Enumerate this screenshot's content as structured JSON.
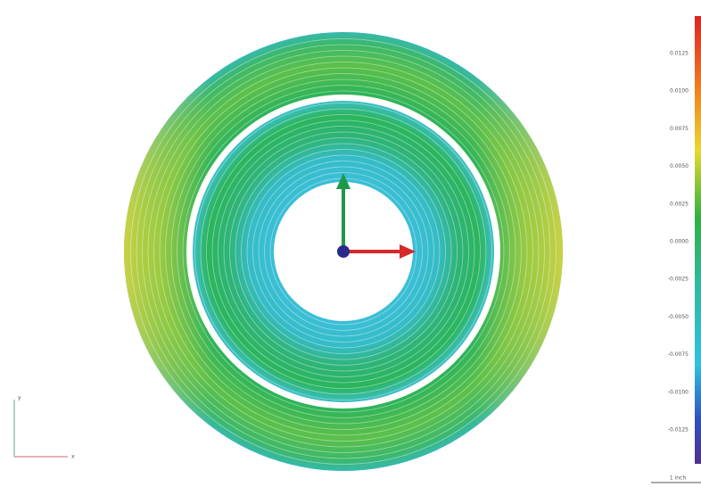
{
  "legend": {
    "labels": [
      "0.0125",
      "0.0100",
      "0.0075",
      "0.0050",
      "0.0025",
      "0.0000",
      "-0.0025",
      "-0.0050",
      "-0.0075",
      "-0.0100",
      "-0.0125"
    ],
    "scale": "1 inch"
  },
  "triad": {
    "x": "x",
    "y": "y"
  }
}
